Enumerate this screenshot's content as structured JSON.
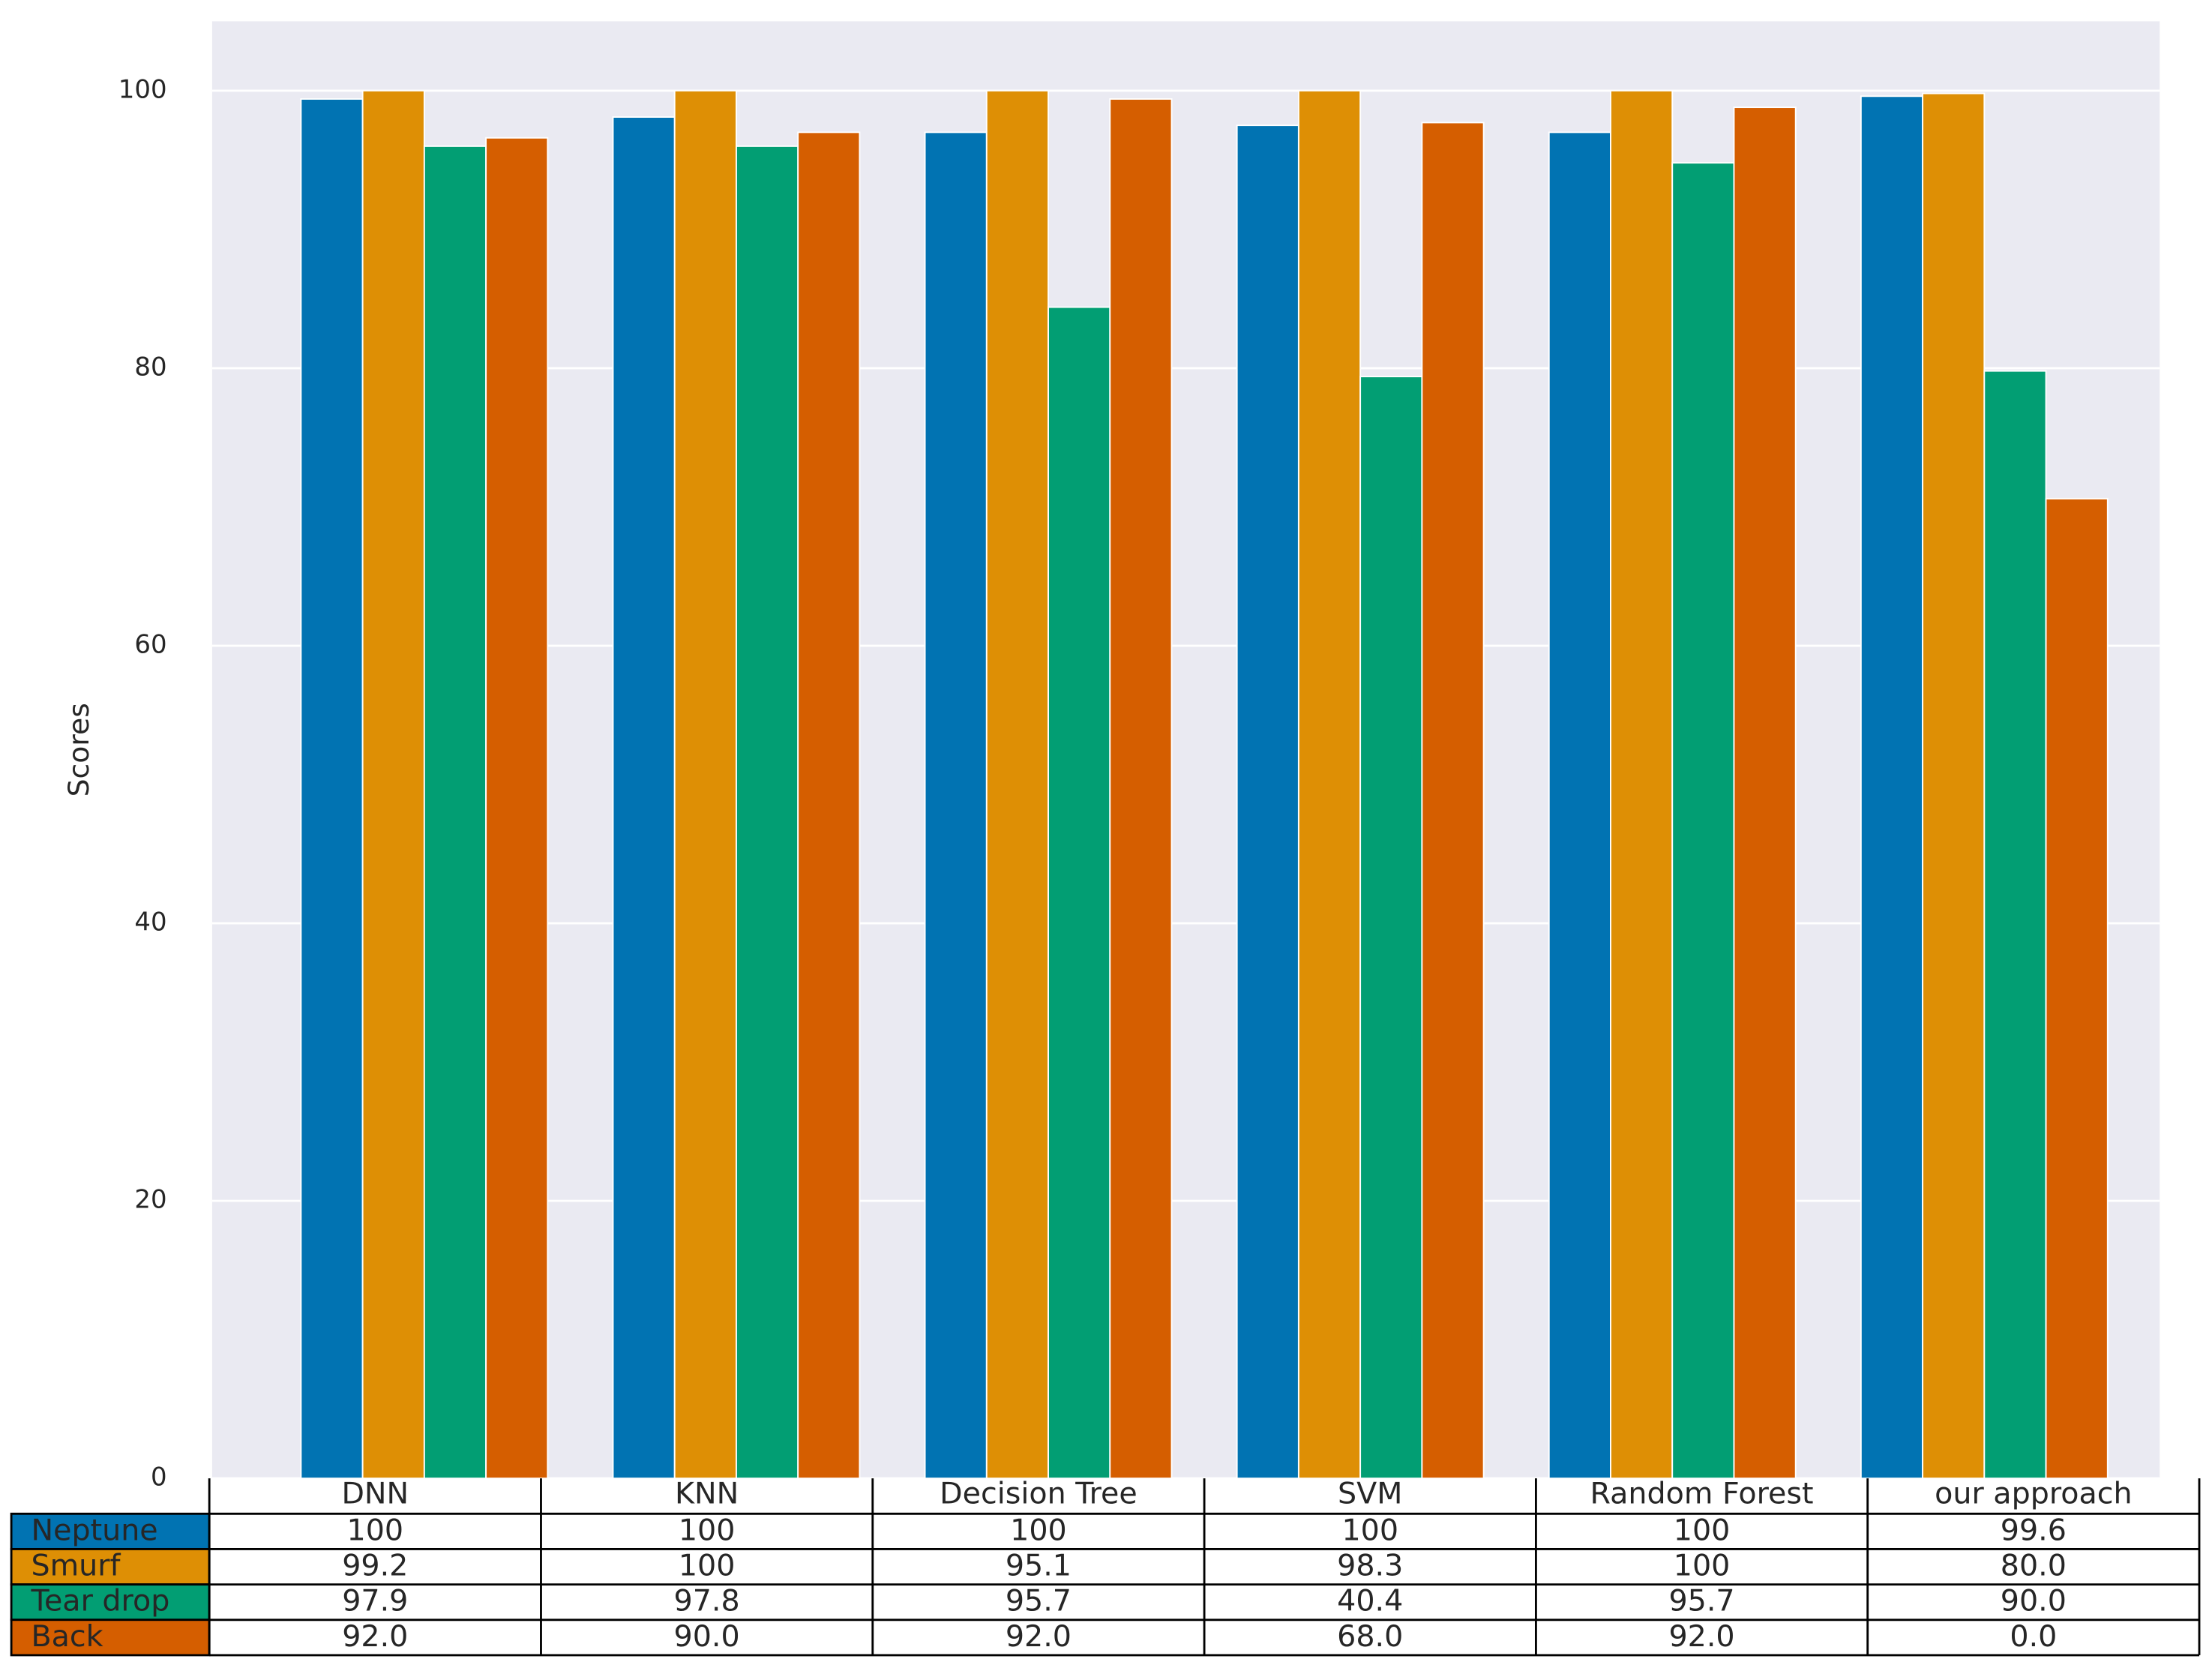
{
  "chart_data": {
    "type": "bar",
    "y_label": "Scores",
    "categories": [
      "DNN",
      "KNN",
      "Decision Tree",
      "SVM",
      "Random Forest",
      "our approach"
    ],
    "series": [
      {
        "name": "Neptune",
        "color": "#0173b2",
        "values": [
          99.4,
          98.1,
          97.0,
          97.5,
          97.0,
          99.6
        ]
      },
      {
        "name": "Smurf",
        "color": "#de8f05",
        "values": [
          100,
          100,
          100,
          100,
          100,
          99.8
        ]
      },
      {
        "name": "Tear drop",
        "color": "#029e73",
        "values": [
          96.0,
          96.0,
          84.4,
          79.4,
          94.8,
          79.8
        ]
      },
      {
        "name": "Back",
        "color": "#d55e00",
        "values": [
          96.6,
          97.0,
          99.4,
          97.7,
          98.8,
          70.6
        ]
      }
    ],
    "ylim": [
      0,
      105
    ],
    "yticks": [
      0,
      20,
      40,
      60,
      80,
      100
    ],
    "grid": true,
    "table": {
      "rows": [
        [
          "100",
          "100",
          "100",
          "100",
          "100",
          "99.6"
        ],
        [
          "99.2",
          "100",
          "95.1",
          "98.3",
          "100",
          "80.0"
        ],
        [
          "97.9",
          "97.8",
          "95.7",
          "40.4",
          "95.7",
          "90.0"
        ],
        [
          "92.0",
          "90.0",
          "92.0",
          "68.0",
          "92.0",
          "0.0"
        ]
      ]
    }
  }
}
